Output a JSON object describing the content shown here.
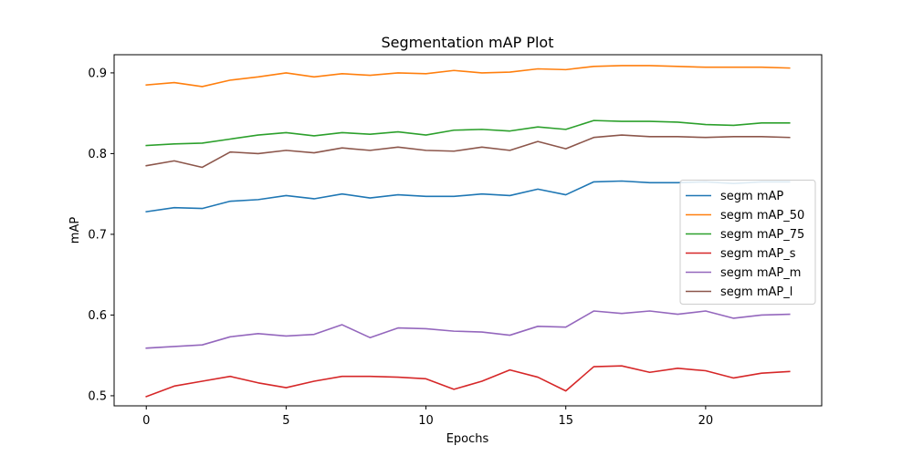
{
  "chart_data": {
    "type": "line",
    "title": "Segmentation mAP Plot",
    "xlabel": "Epochs",
    "ylabel": "mAP",
    "xlim": [
      -1.15,
      24.15
    ],
    "ylim": [
      0.4875,
      0.9225
    ],
    "xticks": [
      0,
      5,
      10,
      15,
      20
    ],
    "yticks": [
      0.5,
      0.6,
      0.7,
      0.8,
      0.9
    ],
    "ytick_labels": [
      "0.5",
      "0.6",
      "0.7",
      "0.8",
      "0.9"
    ],
    "grid": false,
    "legend_position": "center-right",
    "x": [
      0,
      1,
      2,
      3,
      4,
      5,
      6,
      7,
      8,
      9,
      10,
      11,
      12,
      13,
      14,
      15,
      16,
      17,
      18,
      19,
      20,
      21,
      22,
      23
    ],
    "series": [
      {
        "name": "segm mAP",
        "color": "#1f77b4",
        "values": [
          0.728,
          0.733,
          0.732,
          0.741,
          0.743,
          0.748,
          0.744,
          0.75,
          0.745,
          0.749,
          0.747,
          0.747,
          0.75,
          0.748,
          0.756,
          0.749,
          0.765,
          0.766,
          0.764,
          0.764,
          0.765,
          0.763,
          0.765,
          0.765
        ]
      },
      {
        "name": "segm mAP_50",
        "color": "#ff7f0e",
        "values": [
          0.885,
          0.888,
          0.883,
          0.891,
          0.895,
          0.9,
          0.895,
          0.899,
          0.897,
          0.9,
          0.899,
          0.903,
          0.9,
          0.901,
          0.905,
          0.904,
          0.908,
          0.909,
          0.909,
          0.908,
          0.907,
          0.907,
          0.907,
          0.906
        ]
      },
      {
        "name": "segm mAP_75",
        "color": "#2ca02c",
        "values": [
          0.81,
          0.812,
          0.813,
          0.818,
          0.823,
          0.826,
          0.822,
          0.826,
          0.824,
          0.827,
          0.823,
          0.829,
          0.83,
          0.828,
          0.833,
          0.83,
          0.841,
          0.84,
          0.84,
          0.839,
          0.836,
          0.835,
          0.838,
          0.838
        ]
      },
      {
        "name": "segm mAP_s",
        "color": "#d62728",
        "values": [
          0.499,
          0.512,
          0.518,
          0.524,
          0.516,
          0.51,
          0.518,
          0.524,
          0.524,
          0.523,
          0.521,
          0.508,
          0.518,
          0.532,
          0.523,
          0.506,
          0.536,
          0.537,
          0.529,
          0.534,
          0.531,
          0.522,
          0.528,
          0.53
        ]
      },
      {
        "name": "segm mAP_m",
        "color": "#9467bd",
        "values": [
          0.559,
          0.561,
          0.563,
          0.573,
          0.577,
          0.574,
          0.576,
          0.588,
          0.572,
          0.584,
          0.583,
          0.58,
          0.579,
          0.575,
          0.586,
          0.585,
          0.605,
          0.602,
          0.605,
          0.601,
          0.605,
          0.596,
          0.6,
          0.601
        ]
      },
      {
        "name": "segm mAP_l",
        "color": "#8c564b",
        "values": [
          0.785,
          0.791,
          0.783,
          0.802,
          0.8,
          0.804,
          0.801,
          0.807,
          0.804,
          0.808,
          0.804,
          0.803,
          0.808,
          0.804,
          0.815,
          0.806,
          0.82,
          0.823,
          0.821,
          0.821,
          0.82,
          0.821,
          0.821,
          0.82
        ]
      }
    ]
  }
}
